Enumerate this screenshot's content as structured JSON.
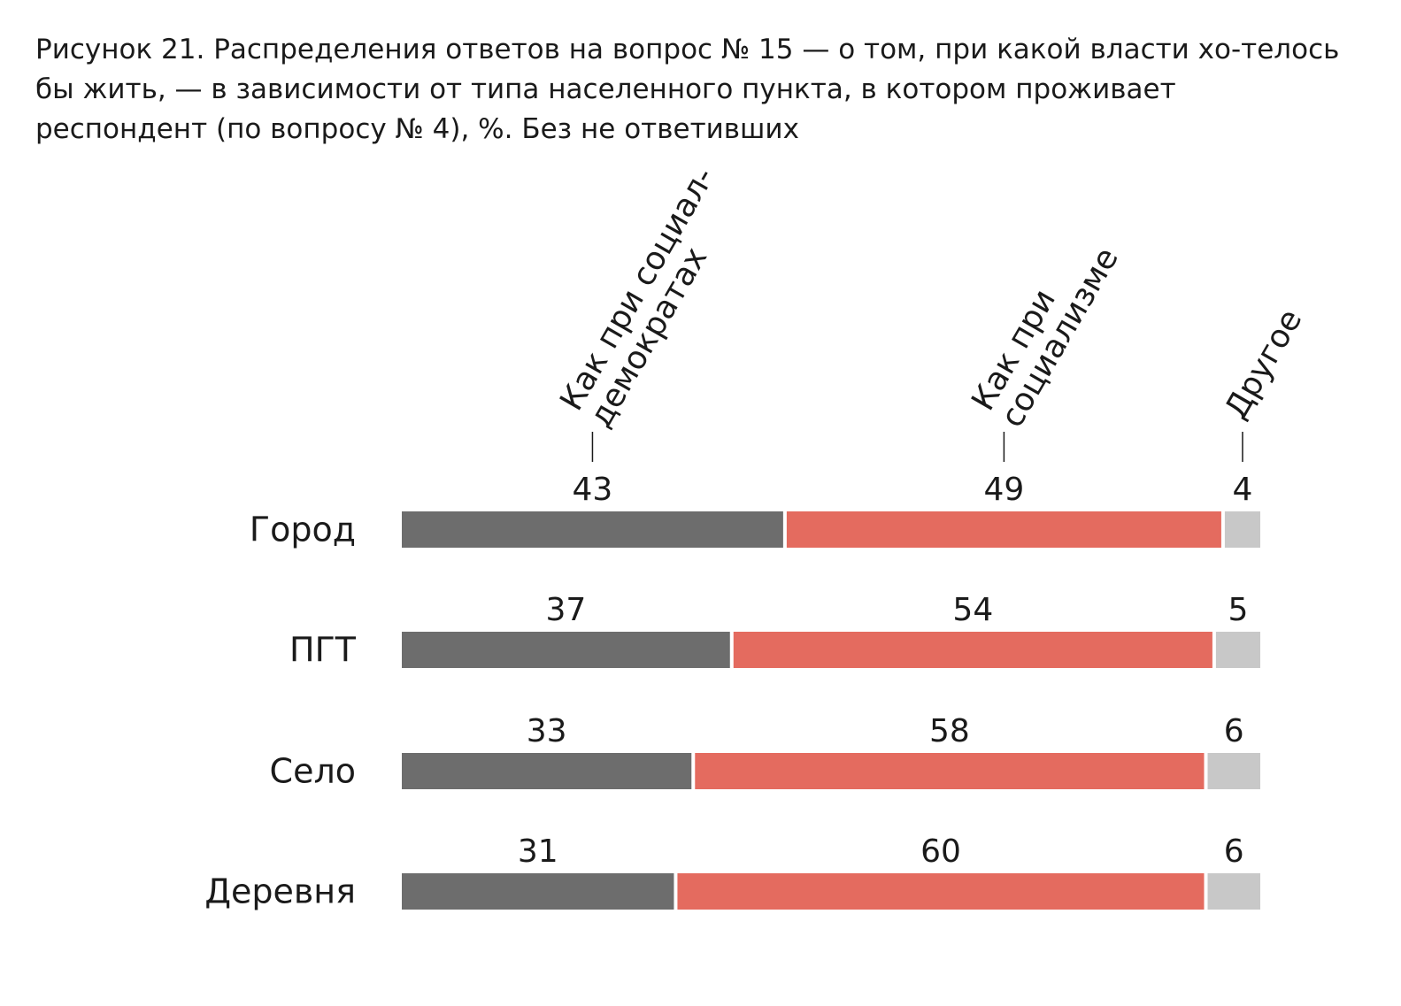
{
  "title": "Рисунок 21. Распределения ответов на вопрос № 15 — о том, при какой власти хо-телось бы жить, — в зависимости от типа населенного пункта, в котором проживает респондент (по вопросу № 4), %. Без не ответивших",
  "chart_data": {
    "type": "bar",
    "stacked": true,
    "orientation": "horizontal",
    "title": "Рисунок 21. Распределения ответов на вопрос № 15 — о том, при какой власти хо-телось бы жить, — в зависимости от типа населенного пункта, в котором проживает респондент (по вопросу № 4), %. Без не ответивших",
    "categories": [
      "Город",
      "ПГТ",
      "Село",
      "Деревня"
    ],
    "series": [
      {
        "name": "Как при социал-демократах",
        "label_lines": [
          "Как при социал-",
          "демократах"
        ],
        "color": "#6d6d6d",
        "values": [
          43,
          37,
          33,
          31
        ]
      },
      {
        "name": "Как при социализме",
        "label_lines": [
          "Как при",
          "социализме"
        ],
        "color": "#e46b5f",
        "values": [
          49,
          54,
          58,
          60
        ]
      },
      {
        "name": "Другое",
        "label_lines": [
          "Другое"
        ],
        "color": "#c8c8c8",
        "values": [
          4,
          5,
          6,
          6
        ]
      }
    ],
    "xlim": [
      0,
      100
    ],
    "grid": false,
    "legend": "rotated labels above first row"
  }
}
